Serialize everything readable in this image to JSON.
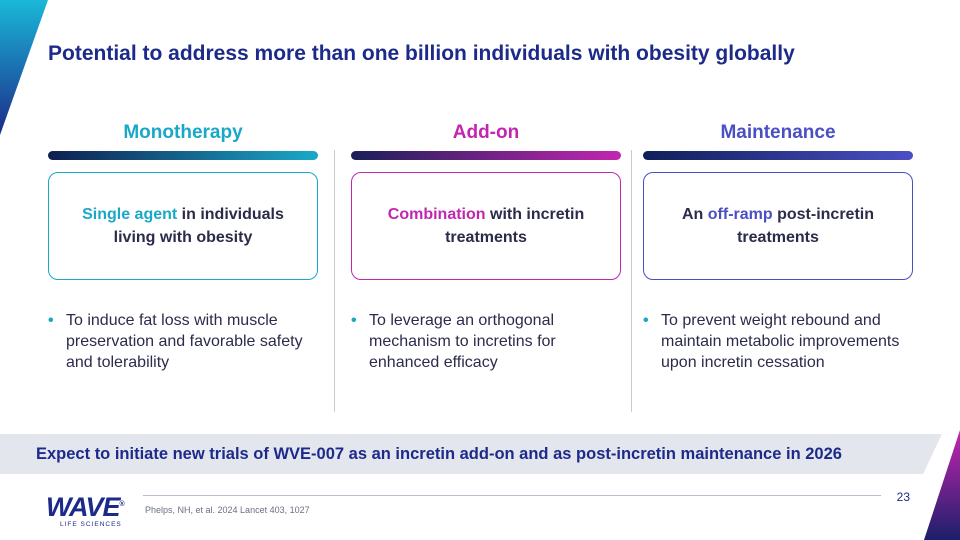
{
  "slide": {
    "title": "Potential to address more than one billion individuals with obesity globally",
    "page_number": "23"
  },
  "columns": [
    {
      "heading": "Monotherapy",
      "heading_color": "#1aa8c8",
      "box": {
        "highlight": "Single agent",
        "rest": " in individuals living with obesity",
        "lead": ""
      },
      "bullet": "To induce fat loss with muscle preservation and favorable safety and tolerability",
      "accent": "#1aa8c8"
    },
    {
      "heading": "Add-on",
      "heading_color": "#c226b0",
      "box": {
        "highlight": "Combination",
        "rest": " with incretin treatments",
        "lead": ""
      },
      "bullet": "To leverage an orthogonal mechanism to incretins for enhanced efficacy",
      "accent": "#c226b0"
    },
    {
      "heading": "Maintenance",
      "heading_color": "#4b4fc4",
      "box": {
        "lead": "An ",
        "highlight": "off-ramp",
        "rest": " post-incretin treatments"
      },
      "bullet": "To prevent weight rebound and maintain metabolic improvements upon incretin cessation",
      "accent": "#4b4fc4"
    }
  ],
  "bullet_symbol": "•",
  "banner": "Expect to initiate new trials of WVE-007 as an incretin add-on and as post-incretin maintenance in 2026",
  "footer": {
    "citation": "Phelps, NH, et al. 2024 Lancet 403, 1027",
    "logo_word": "WAVE",
    "logo_mark": "®",
    "logo_sub": "LIFE SCIENCES"
  }
}
